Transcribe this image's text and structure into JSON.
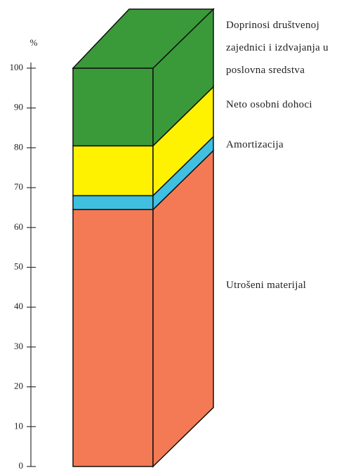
{
  "chart_data": {
    "type": "bar",
    "ylabel": "%",
    "ylim": [
      0,
      100
    ],
    "yticks": [
      0,
      10,
      20,
      30,
      40,
      50,
      60,
      70,
      80,
      90,
      100
    ],
    "stacked": true,
    "series": [
      {
        "name": "Utrošeni materijal",
        "color": "#f47a55",
        "values": [
          64.5
        ]
      },
      {
        "name": "Amortizacija",
        "color": "#3fc0e0",
        "values": [
          3.5
        ]
      },
      {
        "name": "Neto osobni dohoci",
        "color": "#fff200",
        "values": [
          12.5
        ]
      },
      {
        "name": "Doprinosi društvenoj zajednici i izdvajanja u poslovna sredstva",
        "color": "#3a9a3a",
        "values": [
          19.5
        ]
      }
    ]
  }
}
